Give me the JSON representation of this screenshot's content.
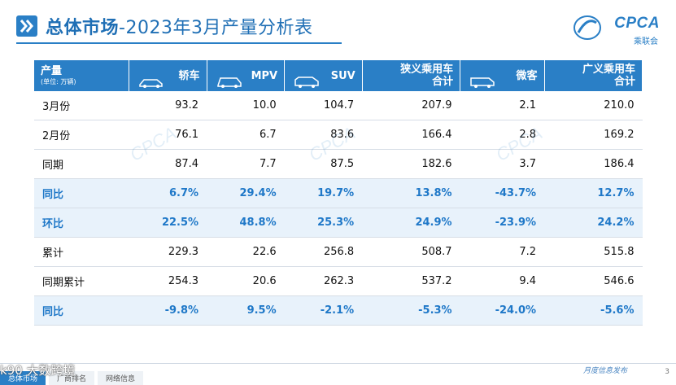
{
  "header": {
    "title_bold": "总体市场",
    "title_rest": "-2023年3月产量分析表"
  },
  "logo": {
    "brand": "CPCA",
    "sub": "乘联会"
  },
  "table": {
    "corner_label": "产量",
    "corner_unit": "(单位: 万辆)",
    "columns": [
      {
        "line1": "轿车",
        "line2": "",
        "icon": "sedan-icon"
      },
      {
        "line1": "MPV",
        "line2": "",
        "icon": "mpv-icon"
      },
      {
        "line1": "SUV",
        "line2": "",
        "icon": "suv-icon"
      },
      {
        "line1": "狭义乘用车",
        "line2": "合计",
        "icon": ""
      },
      {
        "line1": "微客",
        "line2": "",
        "icon": "minibus-icon"
      },
      {
        "line1": "广义乘用车",
        "line2": "合计",
        "icon": ""
      }
    ],
    "rows": [
      {
        "label": "3月份",
        "values": [
          "93.2",
          "10.0",
          "104.7",
          "207.9",
          "2.1",
          "210.0"
        ],
        "highlight": false
      },
      {
        "label": "2月份",
        "values": [
          "76.1",
          "6.7",
          "83.6",
          "166.4",
          "2.8",
          "169.2"
        ],
        "highlight": false
      },
      {
        "label": "同期",
        "values": [
          "87.4",
          "7.7",
          "87.5",
          "182.6",
          "3.7",
          "186.4"
        ],
        "highlight": false
      },
      {
        "label": "同比",
        "values": [
          "6.7%",
          "29.4%",
          "19.7%",
          "13.8%",
          "-43.7%",
          "12.7%"
        ],
        "highlight": true
      },
      {
        "label": "环比",
        "values": [
          "22.5%",
          "48.8%",
          "25.3%",
          "24.9%",
          "-23.9%",
          "24.2%"
        ],
        "highlight": true
      },
      {
        "label": "累计",
        "values": [
          "229.3",
          "22.6",
          "256.8",
          "508.7",
          "7.2",
          "515.8"
        ],
        "highlight": false
      },
      {
        "label": "同期累计",
        "values": [
          "254.3",
          "20.6",
          "262.3",
          "537.2",
          "9.4",
          "546.6"
        ],
        "highlight": false
      },
      {
        "label": "同比",
        "values": [
          "-9.8%",
          "9.5%",
          "-2.1%",
          "-5.3%",
          "-24.0%",
          "-5.6%"
        ],
        "highlight": true
      }
    ]
  },
  "footer": {
    "tabs": [
      "总体市场",
      "厂商排名",
      "网络信息"
    ],
    "watermark": "k90 大数跨境",
    "note": "月度信息发布",
    "page": "3"
  },
  "colors": {
    "accent": "#2a7fc6",
    "highlight_text": "#1f78c8",
    "highlight_bg": "#e8f2fb"
  }
}
